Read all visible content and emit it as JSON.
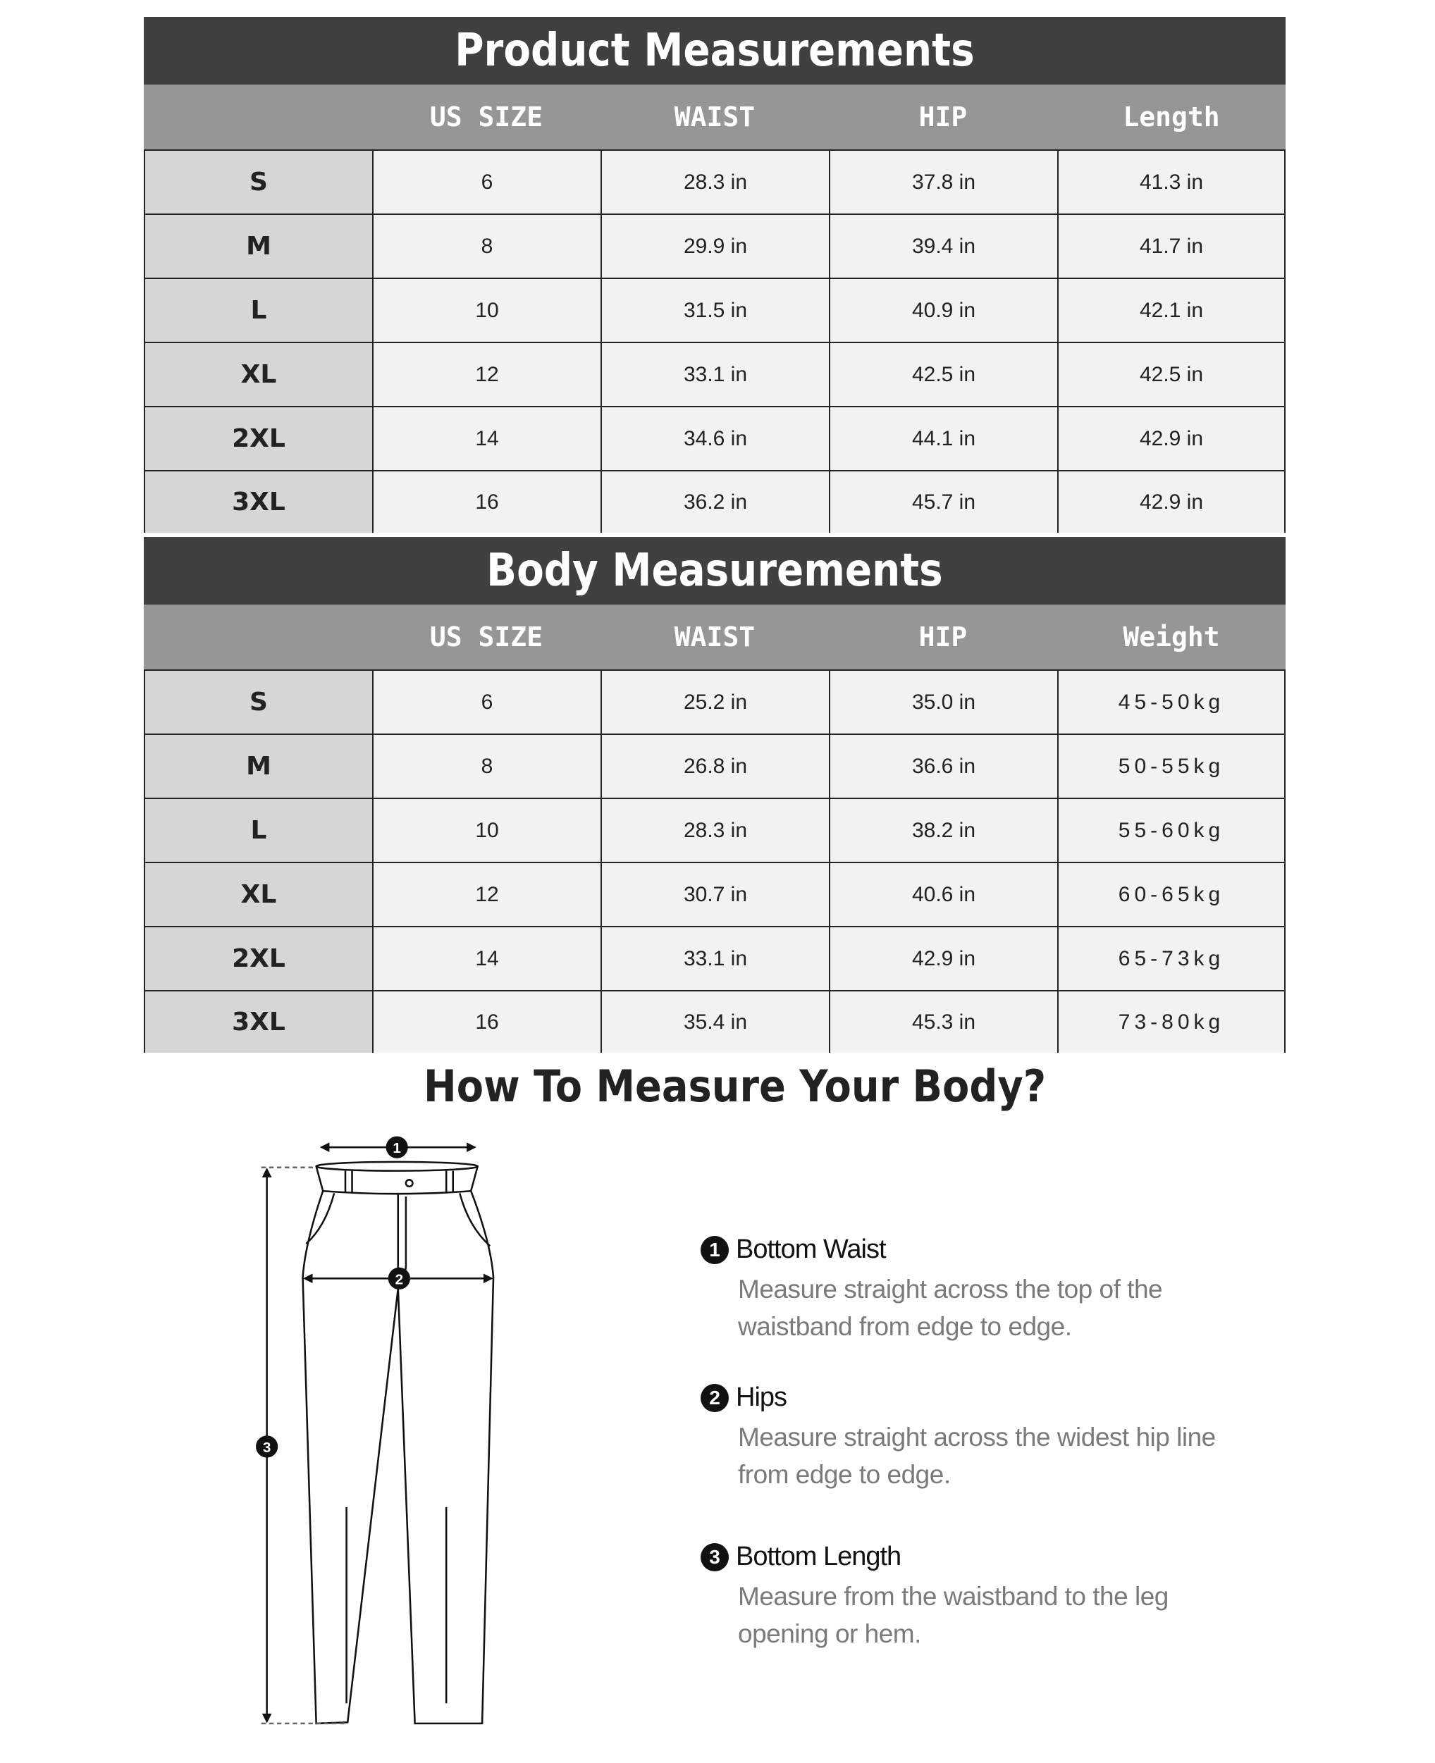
{
  "product": {
    "title": "Product Measurements",
    "headers": [
      "",
      "US SIZE",
      "WAIST",
      "HIP",
      "Length"
    ],
    "rows": [
      [
        "S",
        "6",
        "28.3 in",
        "37.8 in",
        "41.3 in"
      ],
      [
        "M",
        "8",
        "29.9 in",
        "39.4 in",
        "41.7 in"
      ],
      [
        "L",
        "10",
        "31.5 in",
        "40.9 in",
        "42.1 in"
      ],
      [
        "XL",
        "12",
        "33.1 in",
        "42.5 in",
        "42.5 in"
      ],
      [
        "2XL",
        "14",
        "34.6 in",
        "44.1 in",
        "42.9 in"
      ],
      [
        "3XL",
        "16",
        "36.2 in",
        "45.7 in",
        "42.9 in"
      ]
    ]
  },
  "body": {
    "title": "Body Measurements",
    "headers": [
      "",
      "US SIZE",
      "WAIST",
      "HIP",
      "Weight"
    ],
    "rows": [
      [
        "S",
        "6",
        "25.2 in",
        "35.0 in",
        "45-50kg"
      ],
      [
        "M",
        "8",
        "26.8 in",
        "36.6 in",
        "50-55kg"
      ],
      [
        "L",
        "10",
        "28.3 in",
        "38.2 in",
        "55-60kg"
      ],
      [
        "XL",
        "12",
        "30.7 in",
        "40.6 in",
        "60-65kg"
      ],
      [
        "2XL",
        "14",
        "33.1 in",
        "42.9 in",
        "65-73kg"
      ],
      [
        "3XL",
        "16",
        "35.4 in",
        "45.3 in",
        "73-80kg"
      ]
    ]
  },
  "guide": {
    "title": "How To Measure Your Body?",
    "markers": [
      "1",
      "2",
      "3"
    ],
    "steps": [
      {
        "num": "1",
        "title": "Bottom Waist",
        "lines": [
          "Measure straight across the top of the",
          "waistband from edge to edge."
        ]
      },
      {
        "num": "2",
        "title": "Hips",
        "lines": [
          "Measure straight across the widest hip line",
          "from edge to edge."
        ]
      },
      {
        "num": "3",
        "title": "Bottom Length",
        "lines": [
          "Measure from the waistband to the leg",
          "opening or hem."
        ]
      }
    ]
  },
  "colors": {
    "title_bar": "#404040",
    "header_bar": "#969696",
    "size_cell": "#d6d6d6",
    "value_cell": "#f2f2f2"
  }
}
